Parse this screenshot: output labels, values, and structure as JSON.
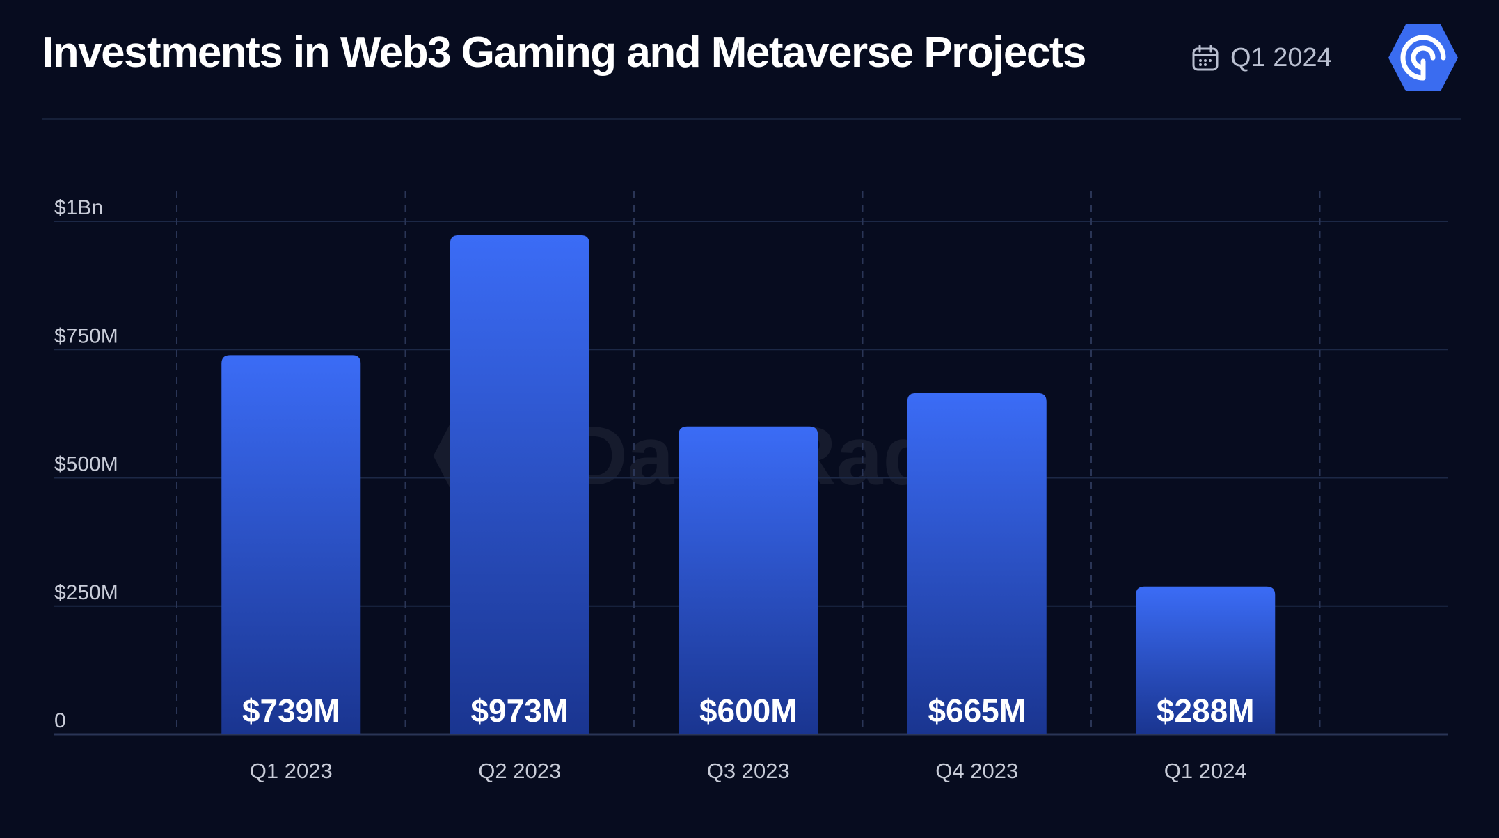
{
  "header": {
    "title": "Investments in Web3 Gaming and Metaverse Projects",
    "period": "Q1 2024",
    "calendar_icon": "calendar-icon",
    "logo_icon": "dappradar-logo-icon"
  },
  "watermark": {
    "text": "DappRadar"
  },
  "colors": {
    "background": "#070c1f",
    "bar_top": "#3b6cf6",
    "bar_bottom": "#1a3590",
    "grid": "#1c2846",
    "axis_text": "#c8ccd8",
    "logo": "#3a6cf0"
  },
  "chart_data": {
    "type": "bar",
    "title": "Investments in Web3 Gaming and Metaverse Projects",
    "categories": [
      "Q1 2023",
      "Q2 2023",
      "Q3 2023",
      "Q4 2023",
      "Q1 2024"
    ],
    "values": [
      739,
      973,
      600,
      665,
      288
    ],
    "value_labels": [
      "$739M",
      "$973M",
      "$600M",
      "$665M",
      "$288M"
    ],
    "unit": "millions USD",
    "ylim": [
      0,
      1000
    ],
    "yticks": [
      0,
      250,
      500,
      750,
      1000
    ],
    "ytick_labels": [
      "0",
      "$250M",
      "$500M",
      "$750M",
      "$1Bn"
    ],
    "xlabel": "",
    "ylabel": "",
    "grid": true,
    "legend": "none"
  }
}
